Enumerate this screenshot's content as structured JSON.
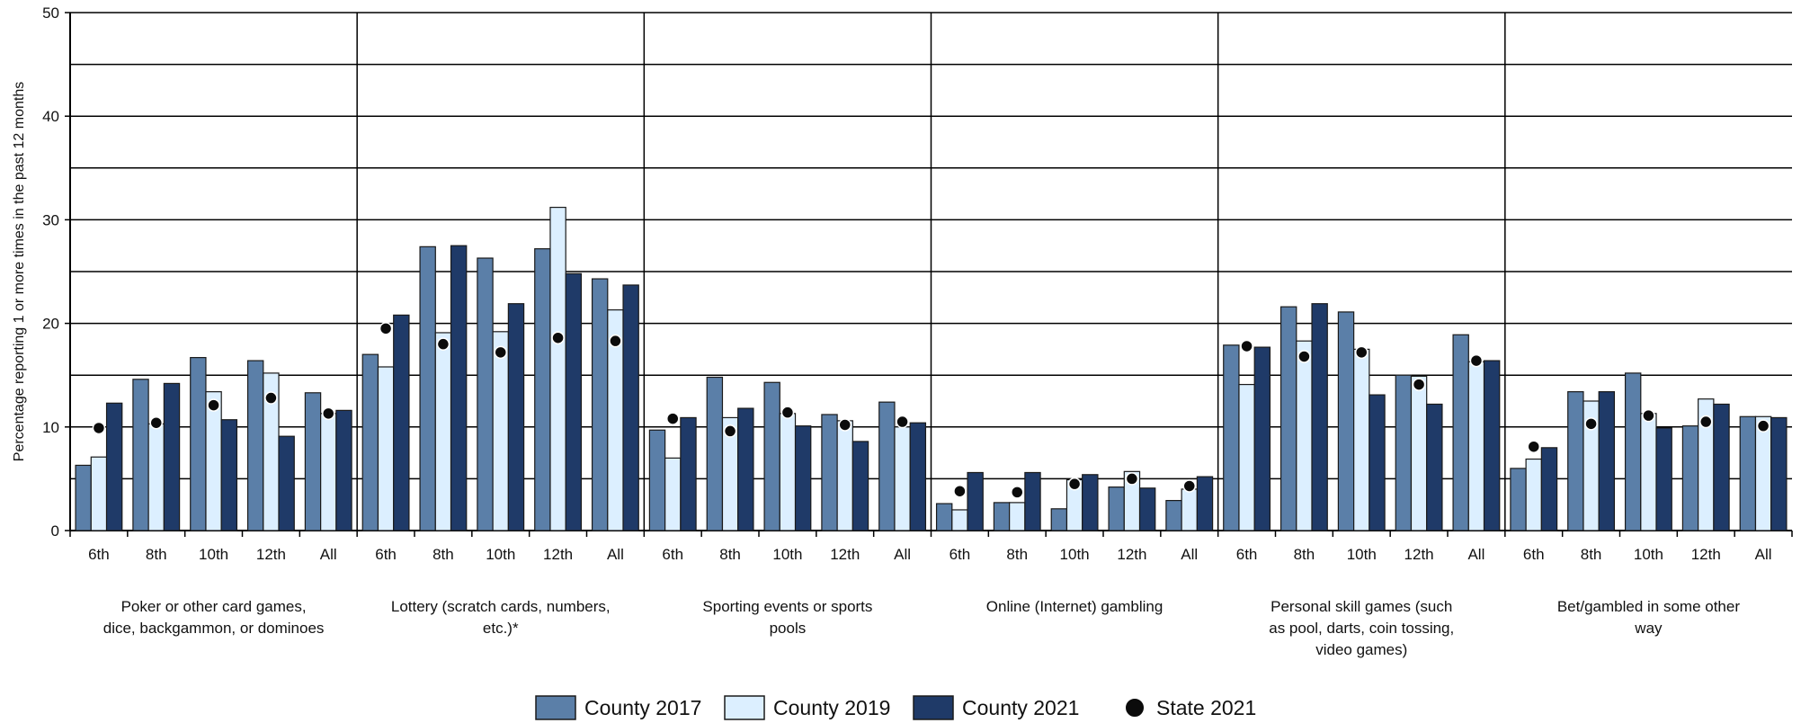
{
  "colors": {
    "County 2017": "#5b7fa8",
    "County 2019": "#dcefff",
    "County 2021": "#1f3a68",
    "State 2021": "#0b0b0b"
  },
  "chart_data": {
    "type": "bar",
    "ylabel": "Percentage reporting 1 or more times in the past 12 months",
    "ylim": [
      0,
      50
    ],
    "yticks": [
      0,
      10,
      20,
      30,
      40,
      50
    ],
    "grid": true,
    "legend_position": "bottom",
    "subcategories": [
      "6th",
      "8th",
      "10th",
      "12th",
      "All"
    ],
    "groups": [
      {
        "label_lines": [
          "Poker or other card games,",
          "dice, backgammon, or dominoes"
        ],
        "series": {
          "County 2017": [
            6.3,
            14.6,
            16.7,
            16.4,
            13.3
          ],
          "County 2019": [
            7.1,
            10.3,
            13.4,
            15.2,
            11.3
          ],
          "County 2021": [
            12.3,
            14.2,
            10.7,
            9.1,
            11.6
          ],
          "State 2021": [
            9.9,
            10.4,
            12.1,
            12.8,
            11.3
          ]
        }
      },
      {
        "label_lines": [
          "Lottery (scratch cards, numbers,",
          "etc.)*"
        ],
        "series": {
          "County 2017": [
            17.0,
            27.4,
            26.3,
            27.2,
            24.3
          ],
          "County 2019": [
            15.8,
            19.1,
            19.2,
            31.2,
            21.3
          ],
          "County 2021": [
            20.8,
            27.5,
            21.9,
            24.8,
            23.7
          ],
          "State 2021": [
            19.5,
            18.0,
            17.2,
            18.6,
            18.3
          ]
        }
      },
      {
        "label_lines": [
          "Sporting events or sports",
          "pools"
        ],
        "series": {
          "County 2017": [
            9.7,
            14.8,
            14.3,
            11.2,
            12.4
          ],
          "County 2019": [
            7.0,
            10.9,
            11.3,
            10.6,
            10.0
          ],
          "County 2021": [
            10.9,
            11.8,
            10.1,
            8.6,
            10.4
          ],
          "State 2021": [
            10.8,
            9.6,
            11.4,
            10.2,
            10.5
          ]
        }
      },
      {
        "label_lines": [
          "Online (Internet) gambling"
        ],
        "series": {
          "County 2017": [
            2.6,
            2.7,
            2.1,
            4.2,
            2.9
          ],
          "County 2019": [
            2.0,
            2.7,
            4.9,
            5.7,
            4.0
          ],
          "County 2021": [
            5.6,
            5.6,
            5.4,
            4.1,
            5.2
          ],
          "State 2021": [
            3.8,
            3.7,
            4.5,
            5.0,
            4.3
          ]
        }
      },
      {
        "label_lines": [
          "Personal skill games (such",
          "as pool, darts, coin tossing,",
          "video games)"
        ],
        "series": {
          "County 2017": [
            17.9,
            21.6,
            21.1,
            15.0,
            18.9
          ],
          "County 2019": [
            14.1,
            18.3,
            17.5,
            14.9,
            16.3
          ],
          "County 2021": [
            17.7,
            21.9,
            13.1,
            12.2,
            16.4
          ],
          "State 2021": [
            17.8,
            16.8,
            17.2,
            14.1,
            16.4
          ]
        }
      },
      {
        "label_lines": [
          "Bet/gambled in some other",
          "way"
        ],
        "series": {
          "County 2017": [
            6.0,
            13.4,
            15.2,
            10.1,
            11.0
          ],
          "County 2019": [
            6.9,
            12.5,
            11.3,
            12.7,
            11.0
          ],
          "County 2021": [
            8.0,
            13.4,
            9.9,
            12.2,
            10.9
          ],
          "State 2021": [
            8.1,
            10.3,
            11.1,
            10.5,
            10.1
          ]
        }
      }
    ],
    "bar_series": [
      "County 2017",
      "County 2019",
      "County 2021"
    ],
    "marker_series": [
      "State 2021"
    ],
    "legend": [
      "County 2017",
      "County 2019",
      "County 2021",
      "State 2021"
    ]
  }
}
